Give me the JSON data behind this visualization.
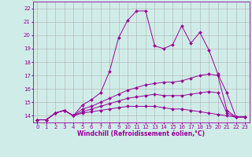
{
  "background_color": "#d0ece8",
  "grid_color": "#b0b0b0",
  "line_color": "#990099",
  "marker": "D",
  "marker_size": 2,
  "xlabel": "Windchill (Refroidissement éolien,°C)",
  "xlabel_fontsize": 5.5,
  "tick_fontsize": 5,
  "xlim": [
    -0.5,
    23.5
  ],
  "ylim": [
    13.5,
    22.5
  ],
  "yticks": [
    14,
    15,
    16,
    17,
    18,
    19,
    20,
    21,
    22
  ],
  "xticks": [
    0,
    1,
    2,
    3,
    4,
    5,
    6,
    7,
    8,
    9,
    10,
    11,
    12,
    13,
    14,
    15,
    16,
    17,
    18,
    19,
    20,
    21,
    22,
    23
  ],
  "series": [
    [
      13.7,
      13.7,
      14.2,
      14.4,
      14.0,
      14.8,
      15.2,
      15.7,
      17.3,
      19.8,
      21.1,
      21.8,
      21.8,
      19.2,
      19.0,
      19.3,
      20.7,
      19.4,
      20.2,
      18.9,
      17.1,
      15.7,
      13.9,
      13.9
    ],
    [
      13.7,
      13.7,
      14.2,
      14.4,
      14.0,
      14.5,
      14.7,
      15.0,
      15.3,
      15.6,
      15.9,
      16.1,
      16.3,
      16.4,
      16.5,
      16.5,
      16.6,
      16.8,
      17.0,
      17.1,
      17.0,
      14.4,
      13.9,
      13.9
    ],
    [
      13.7,
      13.7,
      14.2,
      14.4,
      14.0,
      14.3,
      14.5,
      14.7,
      14.9,
      15.1,
      15.3,
      15.4,
      15.5,
      15.6,
      15.5,
      15.5,
      15.5,
      15.6,
      15.7,
      15.8,
      15.7,
      14.2,
      13.9,
      13.9
    ],
    [
      13.7,
      13.7,
      14.2,
      14.4,
      14.0,
      14.2,
      14.3,
      14.4,
      14.5,
      14.6,
      14.7,
      14.7,
      14.7,
      14.7,
      14.6,
      14.5,
      14.5,
      14.4,
      14.3,
      14.2,
      14.1,
      14.0,
      13.9,
      13.9
    ]
  ]
}
